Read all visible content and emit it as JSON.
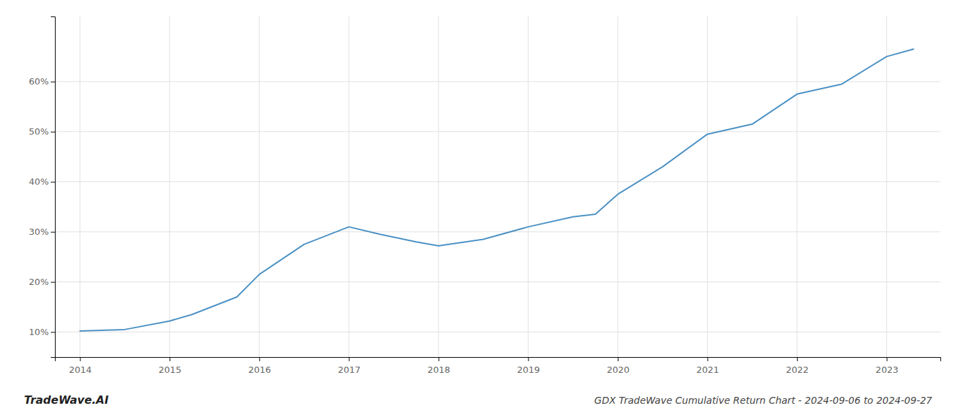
{
  "chart_data": {
    "type": "line",
    "title": "GDX TradeWave Cumulative Return Chart - 2024-09-06 to 2024-09-27",
    "annotations": [
      "TradeWave.AI"
    ],
    "x": [
      2014,
      2014.5,
      2015,
      2015.25,
      2015.75,
      2016,
      2016.5,
      2017,
      2017.35,
      2017.75,
      2018,
      2018.5,
      2019,
      2019.5,
      2019.75,
      2020,
      2020.5,
      2021,
      2021.5,
      2022,
      2022.5,
      2023,
      2023.3
    ],
    "values": [
      10.2,
      10.5,
      12.2,
      13.5,
      17.0,
      21.5,
      27.5,
      31.0,
      29.5,
      28.0,
      27.2,
      28.5,
      31.0,
      33.0,
      33.5,
      37.5,
      43.0,
      49.5,
      51.5,
      57.5,
      59.5,
      65.0,
      66.5
    ],
    "color": "#4a90c4",
    "xlim": [
      2013.72,
      2023.6
    ],
    "ylim": [
      5,
      73
    ],
    "xticks": [
      2014,
      2015,
      2016,
      2017,
      2018,
      2019,
      2020,
      2021,
      2022,
      2023
    ],
    "yticks": [
      {
        "value": 10,
        "label": "10%"
      },
      {
        "value": 20,
        "label": "20%"
      },
      {
        "value": 30,
        "label": "30%"
      },
      {
        "value": 40,
        "label": "40%"
      },
      {
        "value": 50,
        "label": "50%"
      },
      {
        "value": 60,
        "label": "60%"
      }
    ],
    "grid": true
  }
}
